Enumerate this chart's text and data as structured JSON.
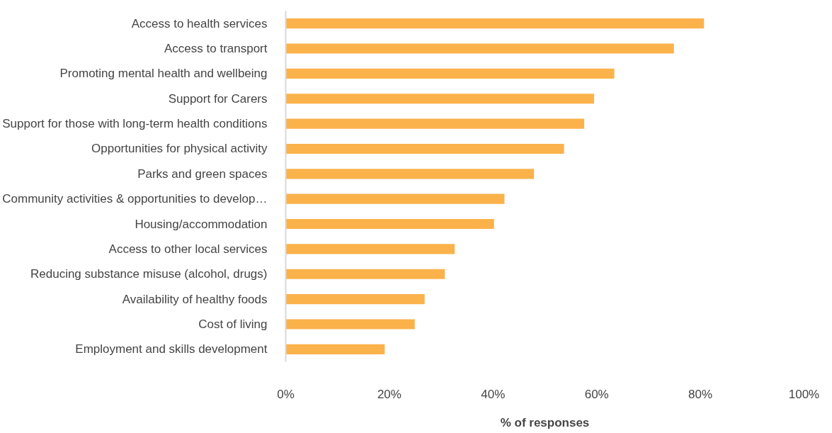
{
  "chart_data": {
    "type": "bar",
    "orientation": "horizontal",
    "xlabel": "% of responses",
    "categories": [
      "Access to health services",
      "Access to transport",
      "Promoting mental health and wellbeing",
      "Support for Carers",
      "Support for those with long-term health conditions",
      "Opportunities for physical activity",
      "Parks and green spaces",
      "Community activities & opportunities to develop…",
      "Housing/accommodation",
      "Access to other local services",
      "Reducing substance misuse (alcohol, drugs)",
      "Availability of healthy foods",
      "Cost of living",
      "Employment and skills development"
    ],
    "values": [
      80.7,
      74.9,
      63.4,
      59.5,
      57.6,
      53.7,
      47.9,
      42.2,
      40.2,
      32.6,
      30.7,
      26.8,
      24.9,
      19.1
    ],
    "color": "#fbb24b",
    "xlim": [
      0,
      100
    ],
    "xticks": [
      {
        "value": 0,
        "label": "0%"
      },
      {
        "value": 20,
        "label": "20%"
      },
      {
        "value": 40,
        "label": "40%"
      },
      {
        "value": 60,
        "label": "60%"
      },
      {
        "value": 80,
        "label": "80%"
      },
      {
        "value": 100,
        "label": "100%"
      }
    ],
    "grid": false
  }
}
